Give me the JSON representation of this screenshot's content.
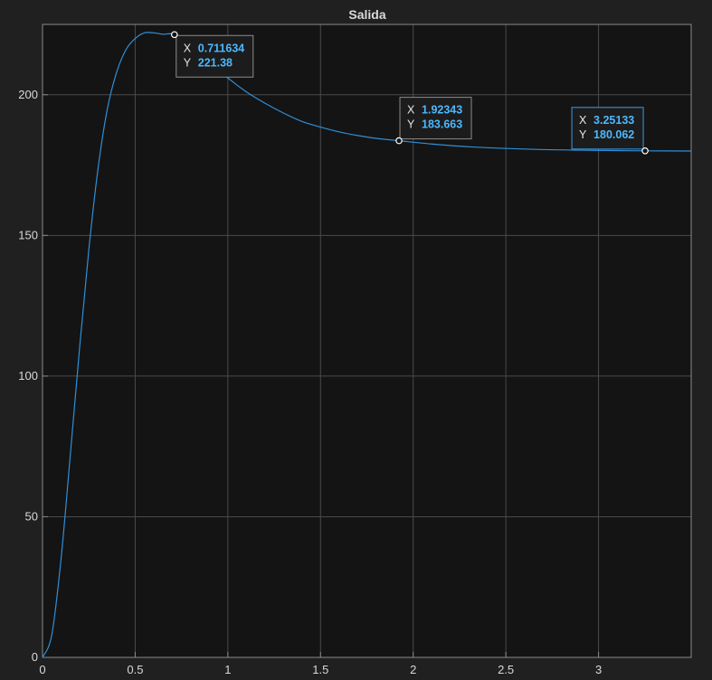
{
  "chart_data": {
    "type": "line",
    "title": "Salida",
    "xlabel": "",
    "ylabel": "",
    "xlim": [
      0,
      3.5
    ],
    "ylim": [
      0,
      225
    ],
    "x_ticks": [
      0,
      0.5,
      1,
      1.5,
      2,
      2.5,
      3
    ],
    "y_ticks": [
      0,
      50,
      100,
      150,
      200
    ],
    "x_tick_labels": [
      "0",
      "0.5",
      "1",
      "1.5",
      "2",
      "2.5",
      "3"
    ],
    "y_tick_labels": [
      "0",
      "50",
      "100",
      "150",
      "200"
    ],
    "grid": true,
    "background": "#141414",
    "figure_background": "#202020",
    "line_color": "#2f8fd8",
    "series": [
      {
        "x": [
          0,
          0.05,
          0.1,
          0.15,
          0.2,
          0.25,
          0.3,
          0.35,
          0.4,
          0.45,
          0.5,
          0.55,
          0.6,
          0.65,
          0.711634,
          0.8,
          0.9,
          1.0,
          1.1,
          1.2,
          1.3,
          1.4,
          1.5,
          1.6,
          1.7,
          1.8,
          1.92343,
          2.1,
          2.3,
          2.5,
          2.7,
          2.9,
          3.1,
          3.25133,
          3.5
        ],
        "values": [
          0,
          8,
          35,
          72,
          110,
          145,
          174,
          195,
          208,
          216,
          220,
          222,
          222,
          221.5,
          221.38,
          217,
          212,
          206,
          201,
          197,
          193.5,
          190.5,
          188.5,
          186.8,
          185.5,
          184.5,
          183.663,
          182.5,
          181.5,
          180.9,
          180.5,
          180.3,
          180.15,
          180.062,
          180
        ]
      }
    ],
    "datatips": [
      {
        "x_label": "X",
        "y_label": "Y",
        "x": "0.711634",
        "y": "221.38"
      },
      {
        "x_label": "X",
        "y_label": "Y",
        "x": "1.92343",
        "y": "183.663"
      },
      {
        "x_label": "X",
        "y_label": "Y",
        "x": "3.25133",
        "y": "180.062"
      }
    ]
  }
}
